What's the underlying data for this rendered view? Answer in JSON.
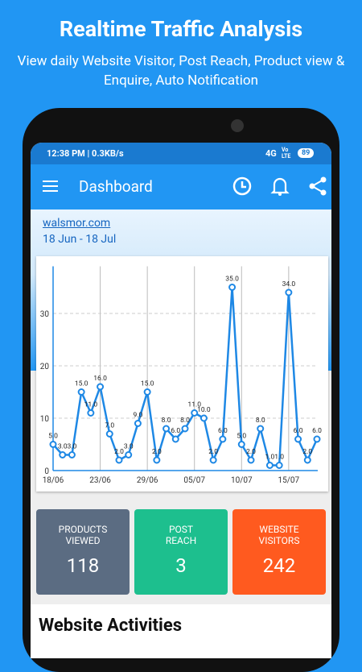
{
  "header": {
    "title": "Realtime Traffic Analysis",
    "subtitle": "View daily Website Visitor, Post Reach, Product view & Enquire, Auto Notification"
  },
  "status_bar": {
    "time": "12:38 PM | 0.3KB/s",
    "network": "4G",
    "volte": "Vo LTE",
    "battery": "89"
  },
  "app_bar": {
    "title": "Dashboard"
  },
  "site": {
    "name": "walsmor.com",
    "range": "18 Jun - 18 Jul"
  },
  "chart_data": {
    "type": "line",
    "categories": [
      "18/06",
      null,
      null,
      null,
      null,
      "23/06",
      null,
      null,
      null,
      null,
      "29/06",
      null,
      null,
      null,
      null,
      "05/07",
      null,
      null,
      null,
      null,
      "10/07",
      null,
      null,
      null,
      null,
      "15/07",
      null,
      null,
      null
    ],
    "values": [
      5,
      3,
      3,
      15,
      11,
      16,
      7,
      2,
      3,
      9,
      15,
      2,
      8,
      6,
      8,
      11,
      10,
      2,
      6,
      35,
      5,
      2,
      8,
      1,
      1,
      34,
      6,
      2,
      6
    ],
    "value_labels": [
      "5.0",
      "3.0",
      "3.0",
      "15.0",
      "11.0",
      "16.0",
      "7.0",
      "2.0",
      "3.0",
      "9.0",
      "15.0",
      "2.0",
      "8.0",
      "6.0",
      "8.0",
      "11.0",
      "10.0",
      "2.0",
      "6.0",
      "35.0",
      "5.0",
      "2.0",
      "8.0",
      "1.0",
      "1.0",
      "34.0",
      "6.0",
      "2.0",
      "6.0"
    ],
    "color": "#1e88e5",
    "ylim": [
      0,
      39
    ],
    "yticks": [
      0,
      10,
      20,
      30
    ],
    "grid": true
  },
  "cards": [
    {
      "label": [
        "PRODUCTS",
        "VIEWED"
      ],
      "value": 118,
      "color": "#5b6c82"
    },
    {
      "label": [
        "POST",
        "REACH"
      ],
      "value": 3,
      "color": "#1dbf8e"
    },
    {
      "label": [
        "WEBSITE",
        "VISITORS"
      ],
      "value": 242,
      "color": "#ff5a1f"
    }
  ],
  "section": {
    "title": "Website Activities"
  }
}
